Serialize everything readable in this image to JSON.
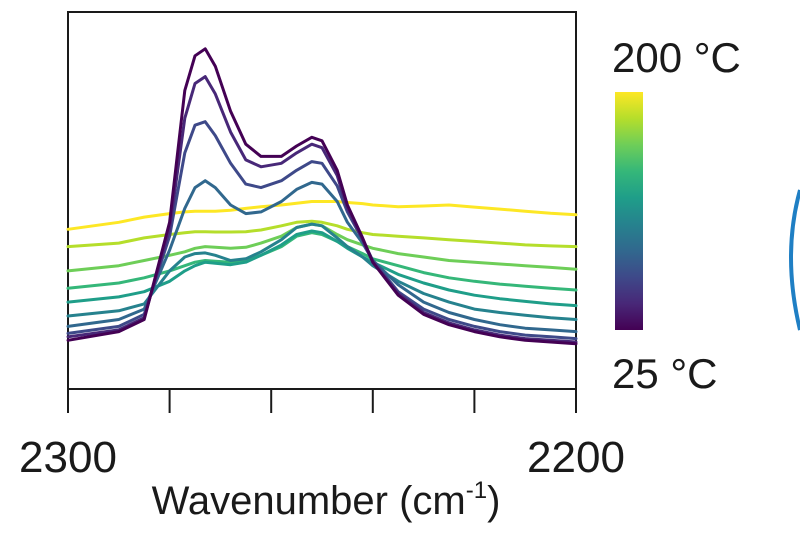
{
  "chart_data": {
    "type": "line",
    "xlabel": "Wavenumber (cm",
    "xlabel_sup": "-1",
    "xlabel_close": ")",
    "x_ticks_labeled": [
      "2300",
      "2200"
    ],
    "xlim": [
      2300,
      2200
    ],
    "x_reversed": true,
    "y_axis_visible": false,
    "grid": false,
    "colorbar": {
      "top_label": "200 °C",
      "bottom_label": "25 °C",
      "colors": [
        "#fde725",
        "#b5de2b",
        "#6ece58",
        "#35b779",
        "#1f9e89",
        "#26828e",
        "#31688e",
        "#3e4989",
        "#482878",
        "#440154"
      ]
    },
    "x": [
      2300,
      2290,
      2285,
      2280,
      2277,
      2275,
      2273,
      2271,
      2268,
      2265,
      2262,
      2258,
      2255,
      2252,
      2250,
      2247,
      2245,
      2242,
      2240,
      2235,
      2230,
      2225,
      2220,
      2215,
      2210,
      2205,
      2200
    ],
    "series": [
      {
        "color": "#fde725",
        "values": [
          0.42,
          0.44,
          0.455,
          0.465,
          0.47,
          0.472,
          0.472,
          0.472,
          0.475,
          0.48,
          0.485,
          0.49,
          0.495,
          0.5,
          0.5,
          0.5,
          0.497,
          0.494,
          0.49,
          0.485,
          0.487,
          0.49,
          0.484,
          0.478,
          0.472,
          0.466,
          0.462
        ]
      },
      {
        "color": "#b5de2b",
        "values": [
          0.37,
          0.38,
          0.395,
          0.405,
          0.41,
          0.413,
          0.413,
          0.412,
          0.412,
          0.413,
          0.418,
          0.43,
          0.44,
          0.443,
          0.44,
          0.43,
          0.42,
          0.41,
          0.405,
          0.4,
          0.395,
          0.39,
          0.385,
          0.38,
          0.375,
          0.372,
          0.37
        ]
      },
      {
        "color": "#6ece58",
        "values": [
          0.3,
          0.315,
          0.33,
          0.345,
          0.355,
          0.365,
          0.37,
          0.368,
          0.365,
          0.368,
          0.38,
          0.4,
          0.425,
          0.435,
          0.43,
          0.405,
          0.39,
          0.375,
          0.365,
          0.35,
          0.34,
          0.33,
          0.325,
          0.32,
          0.315,
          0.31,
          0.305
        ]
      },
      {
        "color": "#35b779",
        "values": [
          0.25,
          0.265,
          0.28,
          0.3,
          0.315,
          0.325,
          0.33,
          0.328,
          0.325,
          0.33,
          0.345,
          0.37,
          0.4,
          0.41,
          0.405,
          0.385,
          0.37,
          0.35,
          0.335,
          0.315,
          0.295,
          0.28,
          0.27,
          0.262,
          0.256,
          0.25,
          0.245
        ]
      },
      {
        "color": "#1f9e89",
        "values": [
          0.21,
          0.225,
          0.24,
          0.27,
          0.3,
          0.315,
          0.325,
          0.322,
          0.318,
          0.325,
          0.345,
          0.375,
          0.405,
          0.415,
          0.41,
          0.385,
          0.365,
          0.34,
          0.325,
          0.29,
          0.265,
          0.245,
          0.23,
          0.22,
          0.212,
          0.205,
          0.2
        ]
      },
      {
        "color": "#26828e",
        "values": [
          0.17,
          0.185,
          0.205,
          0.3,
          0.34,
          0.35,
          0.352,
          0.345,
          0.33,
          0.335,
          0.355,
          0.39,
          0.425,
          0.435,
          0.43,
          0.395,
          0.37,
          0.34,
          0.315,
          0.27,
          0.235,
          0.21,
          0.19,
          0.18,
          0.172,
          0.165,
          0.16
        ]
      },
      {
        "color": "#31688e",
        "values": [
          0.14,
          0.16,
          0.19,
          0.36,
          0.48,
          0.54,
          0.56,
          0.54,
          0.49,
          0.465,
          0.47,
          0.5,
          0.535,
          0.555,
          0.55,
          0.5,
          0.44,
          0.38,
          0.33,
          0.26,
          0.21,
          0.18,
          0.16,
          0.145,
          0.135,
          0.13,
          0.125
        ]
      },
      {
        "color": "#3e4989",
        "values": [
          0.12,
          0.14,
          0.175,
          0.4,
          0.64,
          0.72,
          0.73,
          0.69,
          0.61,
          0.55,
          0.54,
          0.56,
          0.59,
          0.615,
          0.61,
          0.545,
          0.47,
          0.39,
          0.33,
          0.24,
          0.19,
          0.16,
          0.14,
          0.125,
          0.115,
          0.11,
          0.105
        ]
      },
      {
        "color": "#482878",
        "values": [
          0.11,
          0.13,
          0.165,
          0.42,
          0.74,
          0.84,
          0.86,
          0.81,
          0.7,
          0.62,
          0.6,
          0.61,
          0.64,
          0.665,
          0.655,
          0.575,
          0.48,
          0.39,
          0.325,
          0.235,
          0.18,
          0.15,
          0.13,
          0.115,
          0.105,
          0.1,
          0.095
        ]
      },
      {
        "color": "#440154",
        "values": [
          0.1,
          0.125,
          0.16,
          0.44,
          0.82,
          0.92,
          0.94,
          0.89,
          0.76,
          0.665,
          0.63,
          0.63,
          0.66,
          0.685,
          0.675,
          0.59,
          0.49,
          0.395,
          0.325,
          0.23,
          0.175,
          0.145,
          0.125,
          0.11,
          0.1,
          0.095,
          0.09
        ]
      }
    ]
  }
}
